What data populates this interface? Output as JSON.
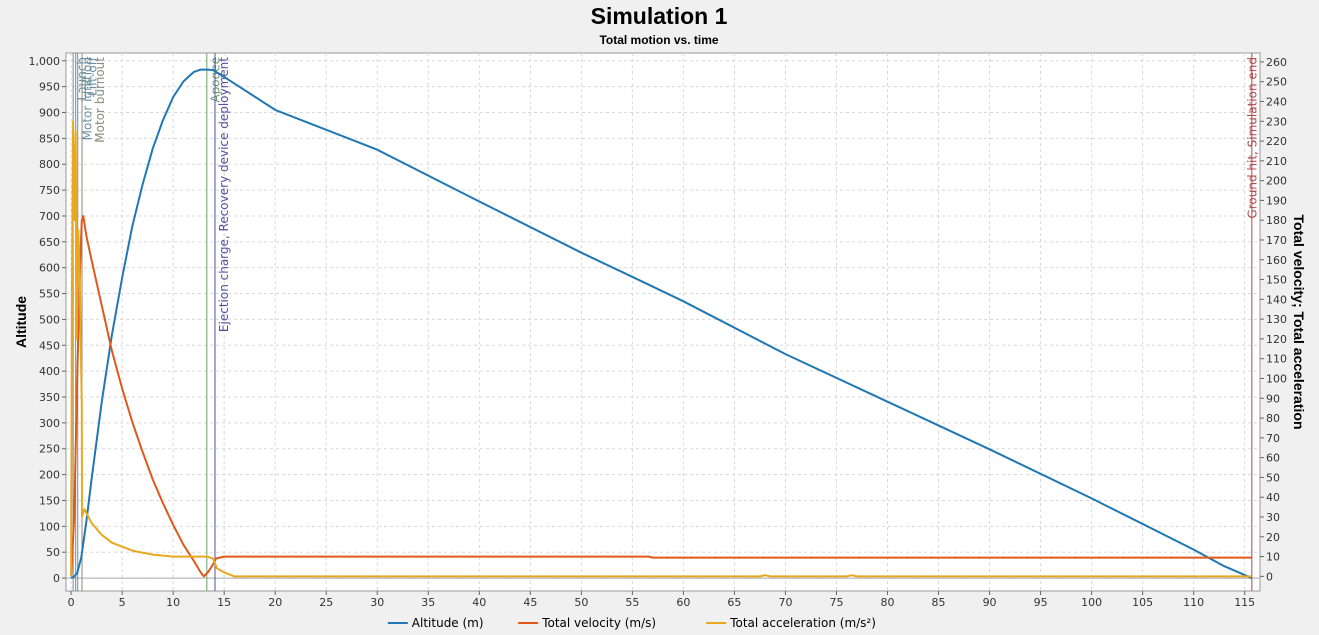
{
  "chart_data": {
    "type": "line",
    "title": "Simulation 1",
    "subtitle": "Total motion vs. time",
    "xlim": [
      -0.5,
      116.5
    ],
    "x_ticks": [
      "0",
      "5",
      "10",
      "15",
      "20",
      "25",
      "30",
      "35",
      "40",
      "45",
      "50",
      "55",
      "60",
      "65",
      "70",
      "75",
      "80",
      "85",
      "90",
      "95",
      "100",
      "105",
      "110",
      "115"
    ],
    "left_axis": {
      "label": "Altitude",
      "ylim": [
        -25,
        1015
      ],
      "ticks": [
        "0",
        "50",
        "100",
        "150",
        "200",
        "250",
        "300",
        "350",
        "400",
        "450",
        "500",
        "550",
        "600",
        "650",
        "700",
        "750",
        "800",
        "850",
        "900",
        "950",
        "1,000"
      ]
    },
    "right_axis": {
      "label": "Total velocity; Total acceleration",
      "ylim": [
        -7.4,
        264.5
      ],
      "ticks": [
        "0",
        "10",
        "20",
        "30",
        "40",
        "50",
        "60",
        "70",
        "80",
        "90",
        "100",
        "110",
        "120",
        "130",
        "140",
        "150",
        "160",
        "170",
        "180",
        "190",
        "200",
        "210",
        "220",
        "230",
        "240",
        "250",
        "260"
      ]
    },
    "series": [
      {
        "name": "Altitude (m)",
        "axis": "left",
        "color": "#1f77b4",
        "points": [
          [
            0,
            0
          ],
          [
            0.3,
            3
          ],
          [
            0.6,
            10
          ],
          [
            1,
            40
          ],
          [
            1.5,
            110
          ],
          [
            2,
            190
          ],
          [
            3,
            340
          ],
          [
            4,
            470
          ],
          [
            5,
            580
          ],
          [
            6,
            680
          ],
          [
            7,
            760
          ],
          [
            8,
            830
          ],
          [
            9,
            885
          ],
          [
            10,
            930
          ],
          [
            11,
            960
          ],
          [
            12,
            978
          ],
          [
            12.7,
            983
          ],
          [
            13.4,
            983
          ],
          [
            13.9,
            982
          ],
          [
            14.5,
            975
          ],
          [
            20,
            905
          ],
          [
            30,
            828
          ],
          [
            40,
            728
          ],
          [
            50,
            629
          ],
          [
            56.5,
            568
          ],
          [
            60,
            535
          ],
          [
            70,
            433
          ],
          [
            80,
            341
          ],
          [
            90,
            249
          ],
          [
            100,
            154
          ],
          [
            110,
            55
          ],
          [
            113,
            23
          ],
          [
            115.7,
            0
          ]
        ]
      },
      {
        "name": "Total velocity (m/s)",
        "axis": "right",
        "color": "#e0581c",
        "points": [
          [
            0,
            0
          ],
          [
            0.3,
            30
          ],
          [
            0.6,
            100
          ],
          [
            0.9,
            160
          ],
          [
            1.05,
            180
          ],
          [
            1.2,
            182
          ],
          [
            1.5,
            172
          ],
          [
            2,
            160
          ],
          [
            3,
            137
          ],
          [
            4,
            114
          ],
          [
            5,
            95
          ],
          [
            6,
            78
          ],
          [
            7,
            63
          ],
          [
            8,
            49
          ],
          [
            9,
            37
          ],
          [
            10,
            26
          ],
          [
            11,
            16
          ],
          [
            12,
            8
          ],
          [
            12.7,
            2
          ],
          [
            13,
            0
          ],
          [
            13.4,
            2
          ],
          [
            13.9,
            6
          ],
          [
            14.2,
            9
          ],
          [
            15,
            10
          ],
          [
            56,
            10
          ],
          [
            56.6,
            10
          ],
          [
            57,
            9.5
          ],
          [
            115.7,
            9.5
          ]
        ]
      },
      {
        "name": "Total acceleration (m/s²)",
        "axis": "right",
        "color": "#e8a820",
        "points": [
          [
            0,
            0
          ],
          [
            0.08,
            140
          ],
          [
            0.2,
            230
          ],
          [
            0.3,
            180
          ],
          [
            0.45,
            225
          ],
          [
            0.55,
            120
          ],
          [
            0.7,
            175
          ],
          [
            0.85,
            150
          ],
          [
            1.05,
            85
          ],
          [
            1.07,
            30
          ],
          [
            1.3,
            34
          ],
          [
            2,
            27
          ],
          [
            3,
            21
          ],
          [
            4,
            17
          ],
          [
            5,
            15
          ],
          [
            6,
            13
          ],
          [
            7,
            12
          ],
          [
            8,
            11
          ],
          [
            9,
            10.5
          ],
          [
            10,
            10
          ],
          [
            11,
            10
          ],
          [
            12,
            10
          ],
          [
            13.3,
            10
          ],
          [
            13.9,
            9
          ],
          [
            14.3,
            4
          ],
          [
            15,
            2
          ],
          [
            16,
            0
          ],
          [
            17,
            0
          ],
          [
            67.5,
            0
          ],
          [
            68,
            0.6
          ],
          [
            68.5,
            0
          ],
          [
            76,
            0
          ],
          [
            76.5,
            0.6
          ],
          [
            77,
            0
          ],
          [
            115.7,
            0
          ]
        ]
      }
    ],
    "events": [
      {
        "time": 0.2,
        "label": "Launch",
        "color": "#6a8fa0"
      },
      {
        "time": 0.45,
        "label": "Motor ignition",
        "color": "#6a8fa0"
      },
      {
        "time": 0.65,
        "label": "Lift-off",
        "color": "#6a8fa0"
      },
      {
        "time": 1.07,
        "label": "Motor burnout",
        "color": "#8a8a78"
      },
      {
        "time": 13.3,
        "label": "Apogee",
        "color": "#6aa06a"
      },
      {
        "time": 14.1,
        "label": "Ejection charge, Recovery device deployment",
        "color": "#5050a0"
      },
      {
        "time": 115.7,
        "label": "Ground hit, Simulation end",
        "color": "#b04a4a"
      }
    ],
    "grid": true,
    "legend": "bottom"
  }
}
